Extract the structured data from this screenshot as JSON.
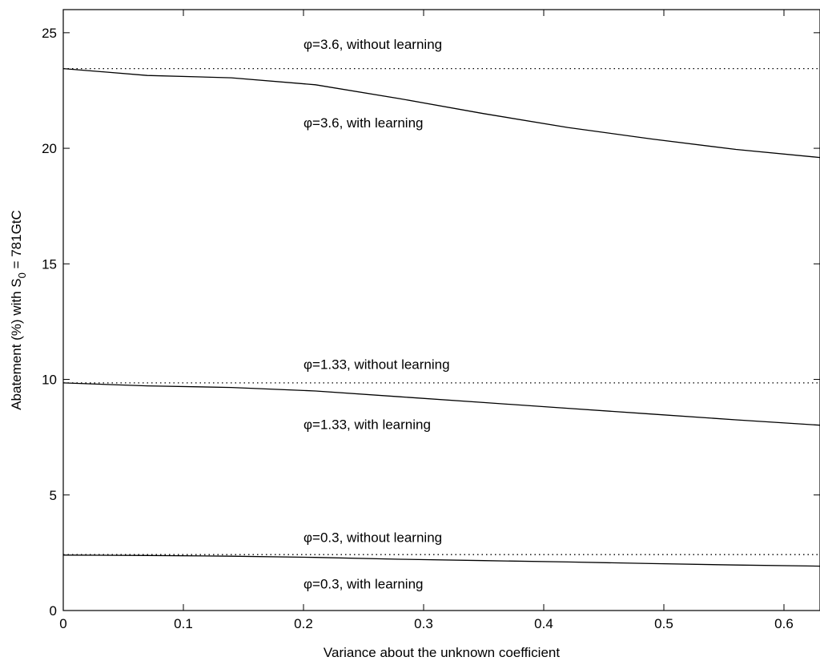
{
  "chart_data": {
    "type": "line",
    "title": "",
    "xlabel": "Variance about the unknown coefficient",
    "ylabel": {
      "prefix": "Abatement (%) with S",
      "subscript": "0",
      "suffix": " = 781GtC"
    },
    "xlim": [
      0,
      0.63
    ],
    "ylim": [
      0,
      26
    ],
    "x_ticks": [
      0,
      0.1,
      0.2,
      0.3,
      0.4,
      0.5,
      0.6
    ],
    "x_tick_labels": [
      "0",
      "0.1",
      "0.2",
      "0.3",
      "0.4",
      "0.5",
      "0.6"
    ],
    "y_ticks": [
      0,
      5,
      10,
      15,
      20,
      25
    ],
    "y_tick_labels": [
      "0",
      "5",
      "10",
      "15",
      "20",
      "25"
    ],
    "grid": false,
    "series": [
      {
        "name": "φ=3.6, without learning",
        "style": "dotted",
        "x": [
          0,
          0.63
        ],
        "y": [
          23.45,
          23.45
        ]
      },
      {
        "name": "φ=3.6, with learning",
        "style": "solid",
        "x": [
          0,
          0.07,
          0.14,
          0.21,
          0.28,
          0.35,
          0.42,
          0.49,
          0.56,
          0.63
        ],
        "y": [
          23.45,
          23.15,
          23.05,
          22.75,
          22.15,
          21.5,
          20.9,
          20.4,
          19.95,
          19.6
        ]
      },
      {
        "name": "φ=1.33, without learning",
        "style": "dotted",
        "x": [
          0,
          0.63
        ],
        "y": [
          9.85,
          9.85
        ]
      },
      {
        "name": "φ=1.33, with learning",
        "style": "solid",
        "x": [
          0,
          0.07,
          0.14,
          0.21,
          0.28,
          0.35,
          0.42,
          0.49,
          0.56,
          0.63
        ],
        "y": [
          9.85,
          9.72,
          9.65,
          9.5,
          9.25,
          9.0,
          8.75,
          8.5,
          8.25,
          8.02
        ]
      },
      {
        "name": "φ=0.3, without learning",
        "style": "dotted",
        "x": [
          0,
          0.63
        ],
        "y": [
          2.42,
          2.42
        ]
      },
      {
        "name": "φ=0.3, with learning",
        "style": "solid",
        "x": [
          0,
          0.07,
          0.14,
          0.21,
          0.28,
          0.35,
          0.42,
          0.49,
          0.56,
          0.63
        ],
        "y": [
          2.4,
          2.38,
          2.35,
          2.3,
          2.22,
          2.16,
          2.1,
          2.03,
          1.97,
          1.92
        ]
      }
    ],
    "annotations": [
      {
        "text": "φ=3.6, without learning",
        "x": 0.2,
        "y": 24.3
      },
      {
        "text": "φ=3.6, with learning",
        "x": 0.2,
        "y": 20.9
      },
      {
        "text": "φ=1.33, without learning",
        "x": 0.2,
        "y": 10.45
      },
      {
        "text": "φ=1.33, with learning",
        "x": 0.2,
        "y": 7.85
      },
      {
        "text": "φ=0.3, without learning",
        "x": 0.2,
        "y": 2.97
      },
      {
        "text": "φ=0.3, with learning",
        "x": 0.2,
        "y": 0.95
      }
    ]
  }
}
